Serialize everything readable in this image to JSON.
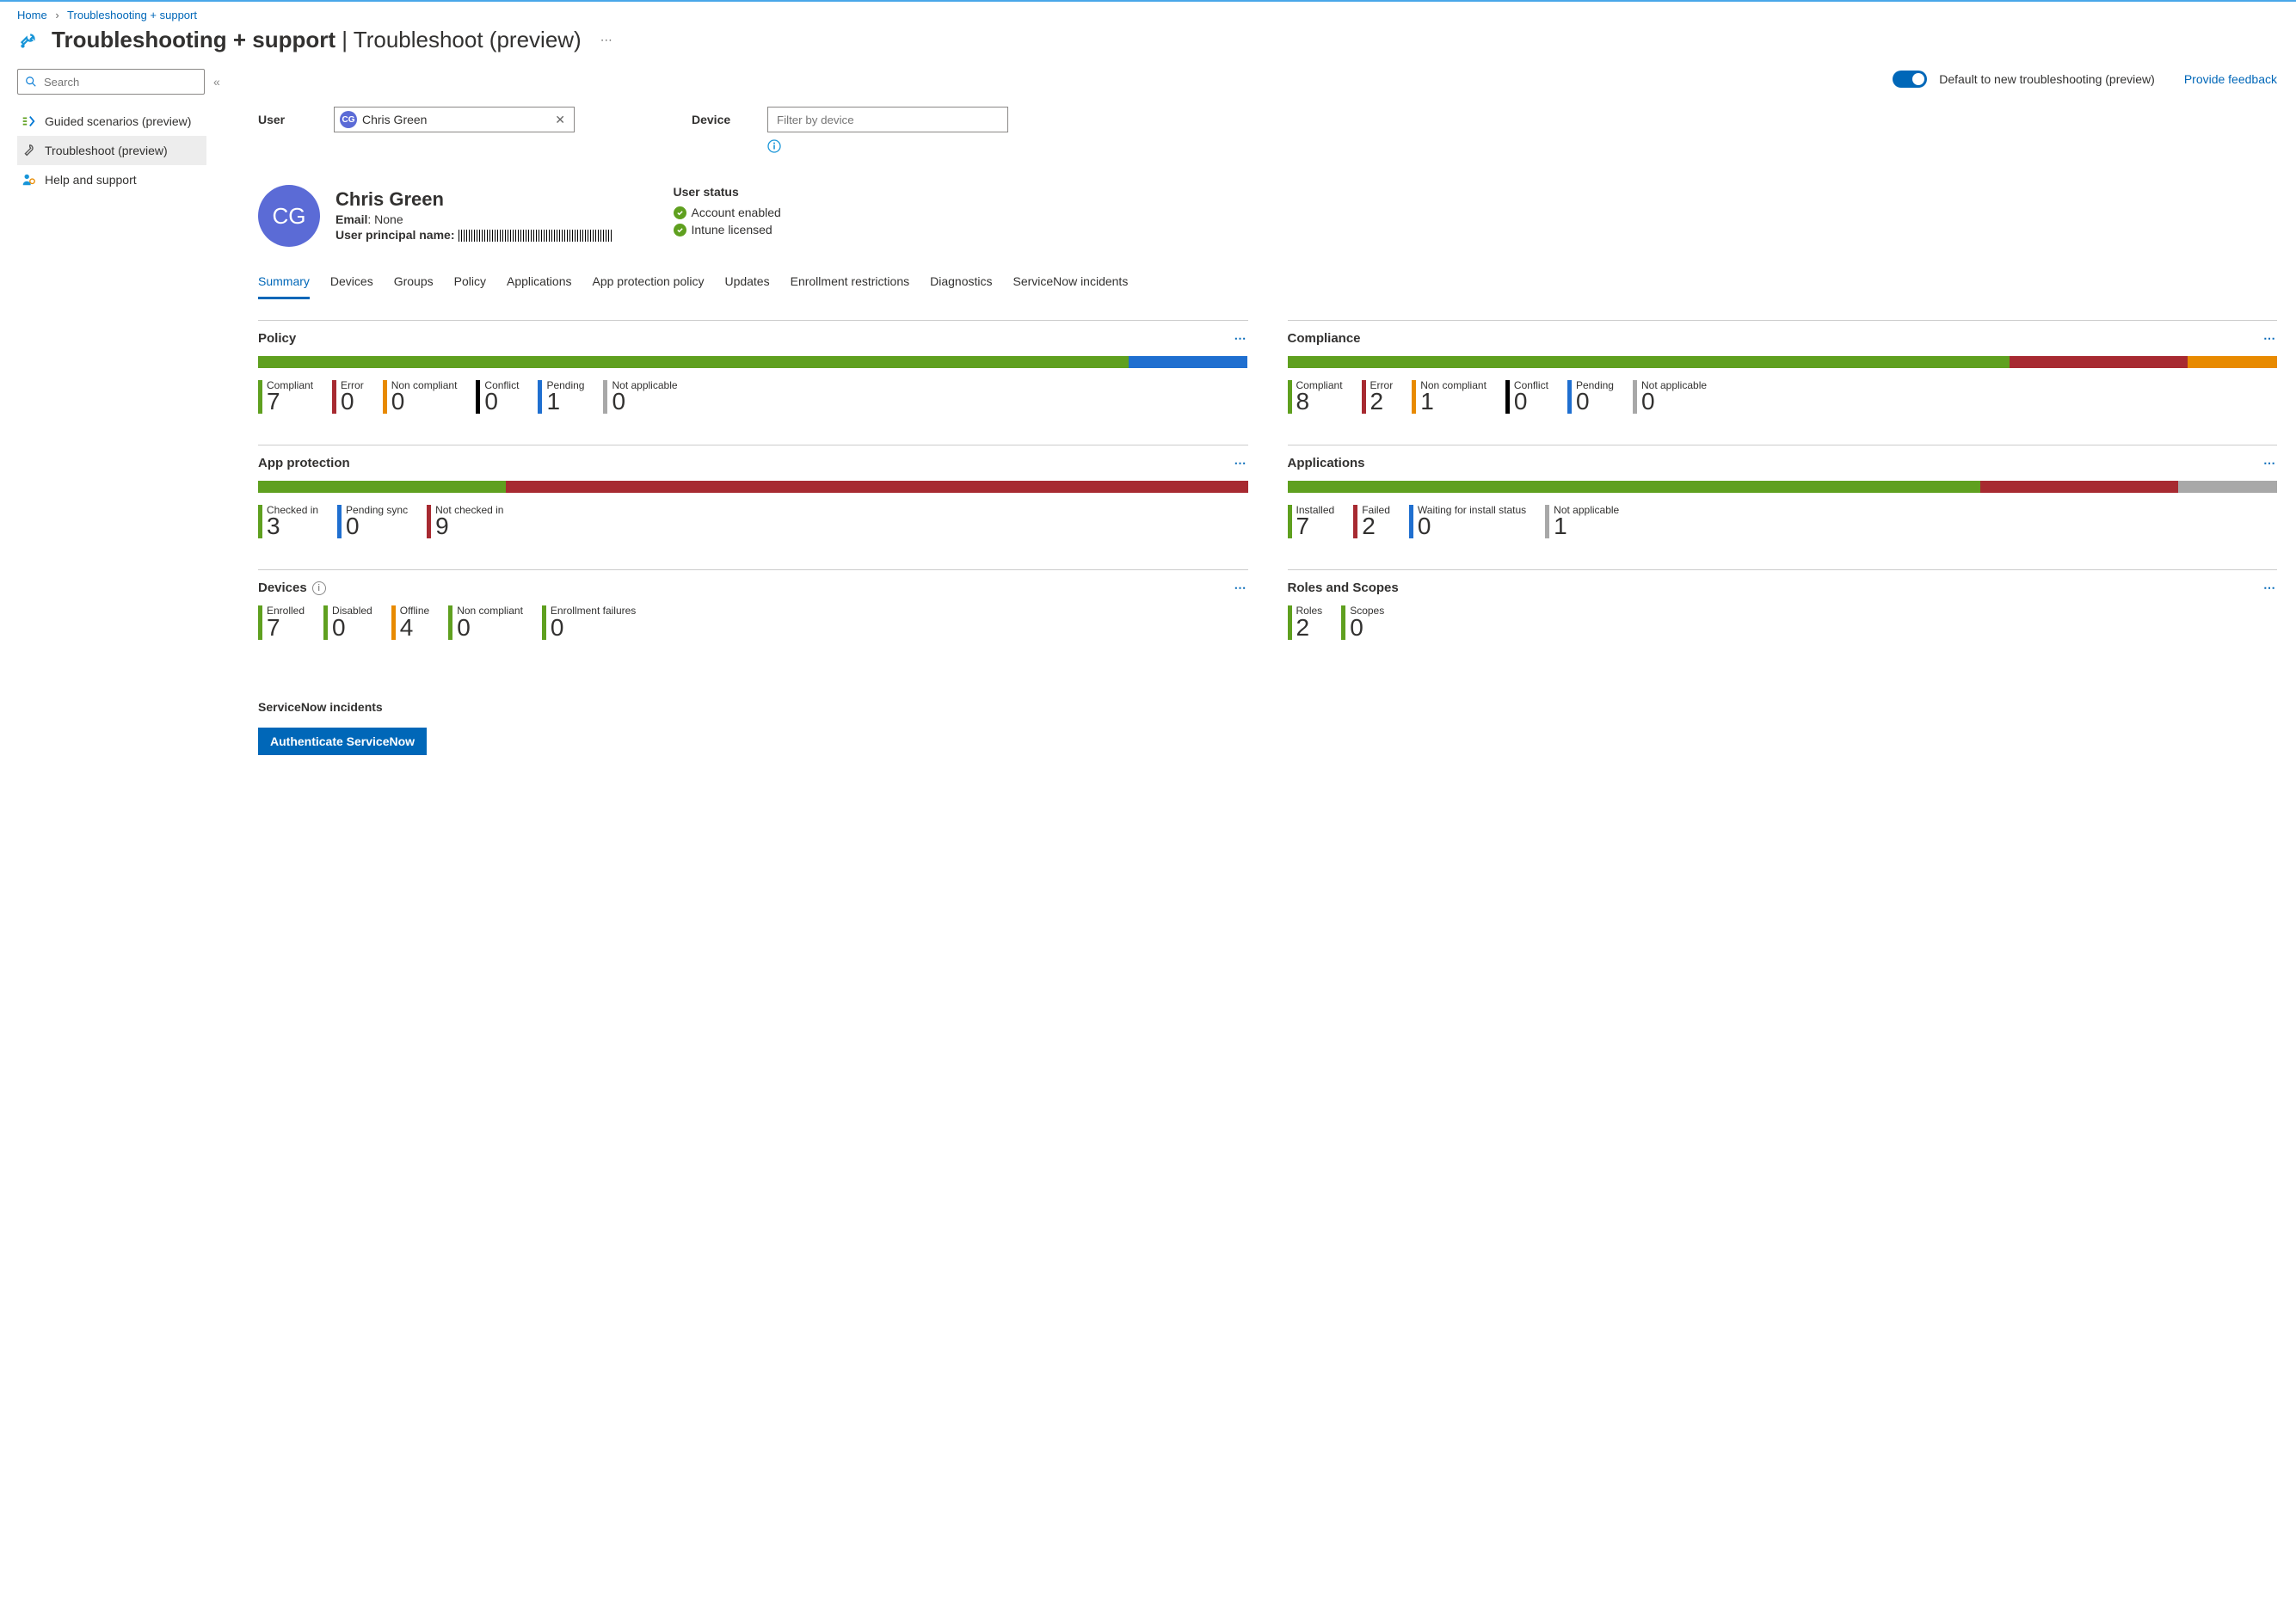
{
  "colors": {
    "green": "#5fa01f",
    "red": "#a72a31",
    "orange": "#e88a00",
    "black": "#000000",
    "blue": "#1f6fd0",
    "grey": "#a8a8a8"
  },
  "breadcrumb": {
    "home": "Home",
    "current": "Troubleshooting + support"
  },
  "title": {
    "bold": "Troubleshooting + support",
    "rest": "Troubleshoot (preview)"
  },
  "sidebar": {
    "search_placeholder": "Search",
    "items": [
      {
        "label": "Guided scenarios (preview)"
      },
      {
        "label": "Troubleshoot (preview)"
      },
      {
        "label": "Help and support"
      }
    ]
  },
  "topbar": {
    "toggle_label": "Default to new troubleshooting (preview)",
    "feedback": "Provide feedback"
  },
  "filters": {
    "user_label": "User",
    "user_chip": "Chris Green",
    "user_initials": "CG",
    "device_label": "Device",
    "device_placeholder": "Filter by device"
  },
  "profile": {
    "initials": "CG",
    "name": "Chris Green",
    "email_label": "Email",
    "email_value": "None",
    "upn_label": "User principal name:",
    "status_title": "User status",
    "status": [
      "Account enabled",
      "Intune licensed"
    ]
  },
  "tabs": [
    "Summary",
    "Devices",
    "Groups",
    "Policy",
    "Applications",
    "App protection policy",
    "Updates",
    "Enrollment restrictions",
    "Diagnostics",
    "ServiceNow incidents"
  ],
  "cards": {
    "policy": {
      "title": "Policy",
      "bar": [
        {
          "c": "green",
          "w": 88
        },
        {
          "c": "blue",
          "w": 12
        }
      ],
      "metrics": [
        {
          "label": "Compliant",
          "value": "7",
          "c": "green"
        },
        {
          "label": "Error",
          "value": "0",
          "c": "red"
        },
        {
          "label": "Non compliant",
          "value": "0",
          "c": "orange"
        },
        {
          "label": "Conflict",
          "value": "0",
          "c": "black"
        },
        {
          "label": "Pending",
          "value": "1",
          "c": "blue"
        },
        {
          "label": "Not applicable",
          "value": "0",
          "c": "grey"
        }
      ]
    },
    "compliance": {
      "title": "Compliance",
      "bar": [
        {
          "c": "green",
          "w": 73
        },
        {
          "c": "red",
          "w": 18
        },
        {
          "c": "orange",
          "w": 9
        }
      ],
      "metrics": [
        {
          "label": "Compliant",
          "value": "8",
          "c": "green"
        },
        {
          "label": "Error",
          "value": "2",
          "c": "red"
        },
        {
          "label": "Non compliant",
          "value": "1",
          "c": "orange"
        },
        {
          "label": "Conflict",
          "value": "0",
          "c": "black"
        },
        {
          "label": "Pending",
          "value": "0",
          "c": "blue"
        },
        {
          "label": "Not applicable",
          "value": "0",
          "c": "grey"
        }
      ]
    },
    "app_protection": {
      "title": "App protection",
      "bar": [
        {
          "c": "green",
          "w": 25
        },
        {
          "c": "red",
          "w": 75
        }
      ],
      "metrics": [
        {
          "label": "Checked in",
          "value": "3",
          "c": "green"
        },
        {
          "label": "Pending sync",
          "value": "0",
          "c": "blue"
        },
        {
          "label": "Not checked in",
          "value": "9",
          "c": "red"
        }
      ]
    },
    "applications": {
      "title": "Applications",
      "bar": [
        {
          "c": "green",
          "w": 70
        },
        {
          "c": "red",
          "w": 20
        },
        {
          "c": "grey",
          "w": 10
        }
      ],
      "metrics": [
        {
          "label": "Installed",
          "value": "7",
          "c": "green"
        },
        {
          "label": "Failed",
          "value": "2",
          "c": "red"
        },
        {
          "label": "Waiting for install status",
          "value": "0",
          "c": "blue"
        },
        {
          "label": "Not applicable",
          "value": "1",
          "c": "grey"
        }
      ]
    },
    "devices": {
      "title": "Devices",
      "hint": true,
      "metrics": [
        {
          "label": "Enrolled",
          "value": "7",
          "c": "green"
        },
        {
          "label": "Disabled",
          "value": "0",
          "c": "green"
        },
        {
          "label": "Offline",
          "value": "4",
          "c": "orange"
        },
        {
          "label": "Non compliant",
          "value": "0",
          "c": "green"
        },
        {
          "label": "Enrollment failures",
          "value": "0",
          "c": "green"
        }
      ]
    },
    "roles": {
      "title": "Roles and Scopes",
      "metrics": [
        {
          "label": "Roles",
          "value": "2",
          "c": "green"
        },
        {
          "label": "Scopes",
          "value": "0",
          "c": "green"
        }
      ]
    }
  },
  "servicenow": {
    "title": "ServiceNow incidents",
    "button": "Authenticate ServiceNow"
  }
}
